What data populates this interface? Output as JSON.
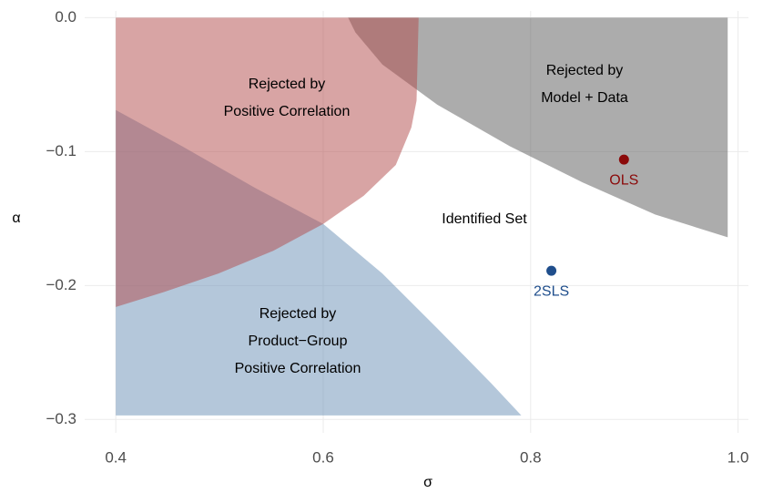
{
  "chart_data": {
    "type": "region",
    "xlabel": "σ",
    "ylabel": "α",
    "xlim": [
      0.37,
      1.01
    ],
    "ylim": [
      -0.31,
      0.005
    ],
    "xticks": [
      0.4,
      0.6,
      0.8,
      {
        "value": 1.0,
        "label": "1.0"
      }
    ],
    "yticks": [
      {
        "value": 0,
        "label": "0.0"
      },
      {
        "value": -0.1,
        "label": "−0.1"
      },
      {
        "value": -0.2,
        "label": "−0.2"
      },
      {
        "value": -0.3,
        "label": "−0.3"
      }
    ],
    "grid": true,
    "regions": [
      {
        "label": [
          "Rejected by",
          "Model + Data"
        ],
        "color": "#595959",
        "x": [
          0.624,
          0.99,
          0.99,
          0.92,
          0.85,
          0.78,
          0.71,
          0.657,
          0.631
        ],
        "y": [
          0.0,
          0.0,
          -0.164,
          -0.147,
          -0.123,
          -0.096,
          -0.065,
          -0.035,
          -0.011
        ]
      },
      {
        "label": [
          "Rejected by",
          "Product−Group",
          "Positive Correlation"
        ],
        "color": "#6a8fb5",
        "x": [
          0.4,
          0.464,
          0.534,
          0.6,
          0.657,
          0.71,
          0.762,
          0.791,
          0.4
        ],
        "y": [
          -0.069,
          -0.096,
          -0.127,
          -0.154,
          -0.191,
          -0.232,
          -0.273,
          -0.297,
          -0.297
        ]
      },
      {
        "label": [
          "Rejected by",
          "Positive Correlation"
        ],
        "color": "#b24a4a",
        "x": [
          0.4,
          0.692,
          0.69,
          0.685,
          0.67,
          0.639,
          0.6,
          0.552,
          0.499,
          0.446,
          0.4
        ],
        "y": [
          0.0,
          0.0,
          -0.062,
          -0.082,
          -0.11,
          -0.133,
          -0.154,
          -0.174,
          -0.191,
          -0.205,
          -0.216
        ]
      }
    ],
    "annotation": "Identified Set",
    "series": [
      {
        "name": "OLS",
        "color": "#8b0a0a",
        "x": [
          0.89
        ],
        "y": [
          -0.106
        ]
      },
      {
        "name": "2SLS",
        "color": "#1f4e8c",
        "x": [
          0.82
        ],
        "y": [
          -0.189
        ]
      }
    ]
  }
}
